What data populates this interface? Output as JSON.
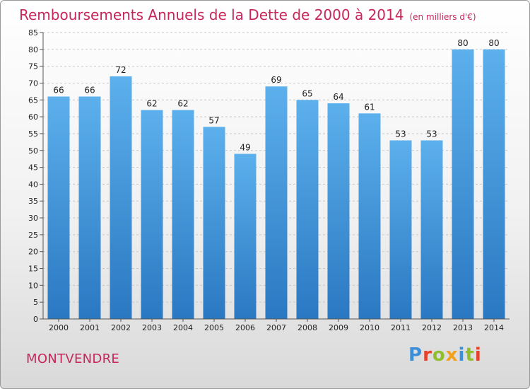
{
  "chart_data": {
    "type": "bar",
    "title": "Remboursements Annuels de la Dette de 2000 à 2014",
    "unit": "(en milliers d'€)",
    "categories": [
      "2000",
      "2001",
      "2002",
      "2003",
      "2004",
      "2005",
      "2006",
      "2007",
      "2008",
      "2009",
      "2010",
      "2011",
      "2012",
      "2013",
      "2014"
    ],
    "values": [
      66,
      66,
      72,
      62,
      62,
      57,
      49,
      69,
      65,
      64,
      61,
      53,
      53,
      80,
      80
    ],
    "ylim": [
      0,
      85
    ],
    "yticks": [
      "0",
      "5",
      "10",
      "15",
      "20",
      "25",
      "30",
      "35",
      "40",
      "45",
      "50",
      "55",
      "60",
      "65",
      "70",
      "75",
      "80",
      "85"
    ],
    "grid": true,
    "bar_color": "#3d8fd6"
  },
  "footer": {
    "commune": "MONTVENDRE",
    "brand": "Proxiti",
    "brand_colors": [
      "#3a8fd8",
      "#e8412a",
      "#8fbf2a",
      "#f2a11e",
      "#3a8fd8",
      "#8fbf2a",
      "#e8412a"
    ]
  }
}
